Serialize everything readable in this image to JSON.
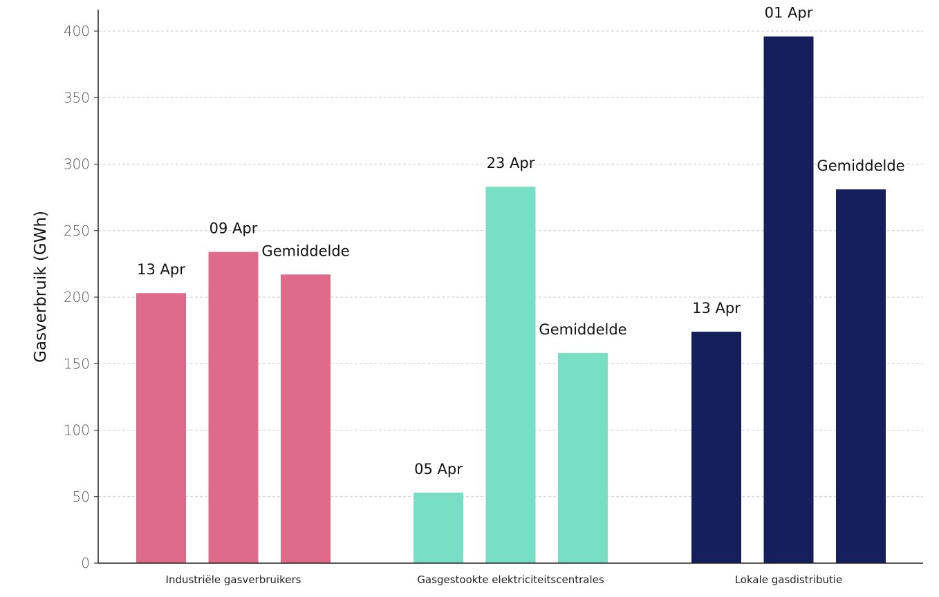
{
  "chart_data": {
    "type": "bar",
    "ylabel": "Gasverbruik (GWh)",
    "xlabel": "",
    "ylim": [
      0,
      400
    ],
    "yticks": [
      0,
      50,
      100,
      150,
      200,
      250,
      300,
      350,
      400
    ],
    "grid": "horizontal-dashed",
    "groups": [
      {
        "category": "Industriële gasverbruikers",
        "color": "#de6b8a",
        "bars": [
          {
            "label": "13 Apr",
            "value": 203
          },
          {
            "label": "09 Apr",
            "value": 234
          },
          {
            "label": "Gemiddelde",
            "value": 217
          }
        ]
      },
      {
        "category": "Gasgestookte elektriciteitscentrales",
        "color": "#78dfc4",
        "bars": [
          {
            "label": "05 Apr",
            "value": 53
          },
          {
            "label": "23 Apr",
            "value": 283
          },
          {
            "label": "Gemiddelde",
            "value": 158
          }
        ]
      },
      {
        "category": "Lokale gasdistributie",
        "color": "#141f5c",
        "bars": [
          {
            "label": "13 Apr",
            "value": 174
          },
          {
            "label": "01 Apr",
            "value": 396
          },
          {
            "label": "Gemiddelde",
            "value": 281
          }
        ]
      }
    ]
  }
}
